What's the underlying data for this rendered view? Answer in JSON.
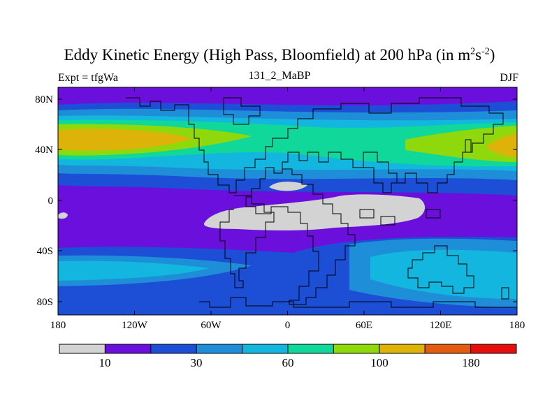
{
  "title": "Eddy Kinetic Energy (High Pass, Bloomfield) at 200 hPa (in m",
  "title_sup1": "2",
  "title_mid": "s",
  "title_sup2": "-2",
  "title_end": ")",
  "left_subtitle": "Expt = tfgWa",
  "center_subtitle": "131_2_MaBP",
  "right_subtitle": "DJF",
  "x_ticks": [
    "180",
    "120W",
    "60W",
    "0",
    "60E",
    "120E",
    "180"
  ],
  "y_ticks": [
    "80N",
    "40N",
    "0",
    "40S",
    "80S"
  ],
  "colorbar": {
    "colors": [
      "#d3d3d3",
      "#6a0fdc",
      "#1c4fd6",
      "#1e8ed8",
      "#12b6de",
      "#10d79a",
      "#8fd80c",
      "#ddb30a",
      "#e25b10",
      "#e60d0d"
    ],
    "labels": [
      "10",
      "30",
      "60",
      "100",
      "180"
    ]
  }
}
